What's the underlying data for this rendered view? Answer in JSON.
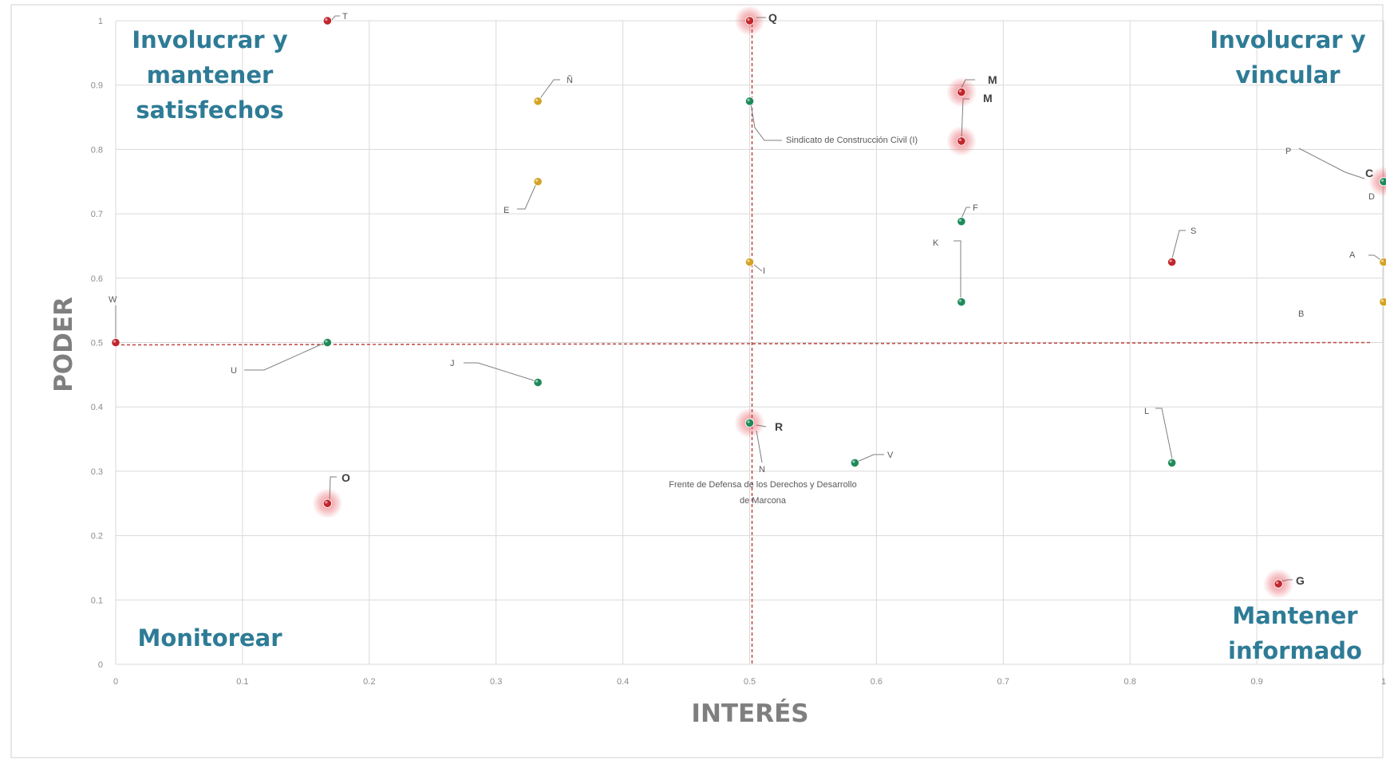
{
  "colors": {
    "red": "#c0272d",
    "green": "#1e8a5a",
    "yellow": "#d4a324",
    "quadrant_text": "#2e7b96",
    "reference_line": "#c0504d"
  },
  "chart_data": {
    "type": "scatter",
    "xlabel": "INTERÉS",
    "ylabel": "PODER",
    "xlim": [
      0,
      1
    ],
    "ylim": [
      0,
      1
    ],
    "xticks": [
      "0",
      "0.1",
      "0.2",
      "0.3",
      "0.4",
      "0.5",
      "0.6",
      "0.7",
      "0.8",
      "0.9",
      "1"
    ],
    "yticks": [
      "0",
      "0.1",
      "0.2",
      "0.3",
      "0.4",
      "0.5",
      "0.6",
      "0.7",
      "0.8",
      "0.9",
      "1"
    ],
    "grid": true,
    "reference_lines": {
      "x": 0.5,
      "y": 0.5
    },
    "quadrants": [
      {
        "id": "top-left",
        "lines": [
          "Involucrar y",
          "mantener",
          "satisfechos"
        ]
      },
      {
        "id": "top-right",
        "lines": [
          "Involucrar y",
          "vincular"
        ]
      },
      {
        "id": "bottom-left",
        "lines": [
          "Monitorear"
        ]
      },
      {
        "id": "bottom-right",
        "lines": [
          "Mantener",
          "informado"
        ]
      }
    ],
    "points": [
      {
        "label": "T",
        "x": 0.167,
        "y": 1.0,
        "color": "red",
        "highlight": false
      },
      {
        "label": "Q",
        "x": 0.5,
        "y": 1.0,
        "color": "red",
        "highlight": true
      },
      {
        "label": "Ñ",
        "x": 0.333,
        "y": 0.875,
        "color": "yellow",
        "highlight": false
      },
      {
        "label": "M",
        "x": 0.667,
        "y": 0.889,
        "color": "red",
        "highlight": true
      },
      {
        "label": "M",
        "x": 0.667,
        "y": 0.813,
        "color": "red",
        "highlight": true
      },
      {
        "label": "Sindicato de Construcción Civil (I)",
        "x": 0.5,
        "y": 0.875,
        "color": "green",
        "highlight": false
      },
      {
        "label": "E",
        "x": 0.333,
        "y": 0.75,
        "color": "yellow",
        "highlight": false
      },
      {
        "label": "F",
        "x": 0.667,
        "y": 0.688,
        "color": "green",
        "highlight": false
      },
      {
        "label": "K",
        "x": 0.667,
        "y": 0.563,
        "color": "green",
        "highlight": false
      },
      {
        "label": "I",
        "x": 0.5,
        "y": 0.625,
        "color": "yellow",
        "highlight": false
      },
      {
        "label": "S",
        "x": 0.833,
        "y": 0.625,
        "color": "red",
        "highlight": false
      },
      {
        "label": "P",
        "x": 1.0,
        "y": 0.75,
        "color": "green",
        "highlight": false
      },
      {
        "label": "C",
        "x": 1.0,
        "y": 0.75,
        "color": "red",
        "highlight": true
      },
      {
        "label": "D",
        "x": 1.0,
        "y": 0.75,
        "color": "green",
        "highlight": false
      },
      {
        "label": "A",
        "x": 1.0,
        "y": 0.625,
        "color": "yellow",
        "highlight": false
      },
      {
        "label": "B",
        "x": 1.0,
        "y": 0.563,
        "color": "yellow",
        "highlight": false
      },
      {
        "label": "W",
        "x": 0.0,
        "y": 0.5,
        "color": "red",
        "highlight": false
      },
      {
        "label": "U",
        "x": 0.167,
        "y": 0.5,
        "color": "green",
        "highlight": false
      },
      {
        "label": "J",
        "x": 0.333,
        "y": 0.438,
        "color": "green",
        "highlight": false
      },
      {
        "label": "R",
        "x": 0.5,
        "y": 0.375,
        "color": "red",
        "highlight": true
      },
      {
        "label": "Frente de Defensa de los Derechos y Desarrollo de Marcona (N)",
        "x": 0.5,
        "y": 0.375,
        "color": "green",
        "highlight": false
      },
      {
        "label": "V",
        "x": 0.583,
        "y": 0.313,
        "color": "green",
        "highlight": false
      },
      {
        "label": "L",
        "x": 0.833,
        "y": 0.313,
        "color": "green",
        "highlight": false
      },
      {
        "label": "O",
        "x": 0.167,
        "y": 0.25,
        "color": "red",
        "highlight": true
      },
      {
        "label": "G",
        "x": 0.917,
        "y": 0.125,
        "color": "red",
        "highlight": true
      }
    ],
    "callouts": {
      "T": "T",
      "Q": "Q",
      "Ñ": "Ñ",
      "M1": "M",
      "M2": "M",
      "sindicato": "Sindicato de Construcción Civil (I)",
      "E": "E",
      "F": "F",
      "K": "K",
      "I": "I",
      "S": "S",
      "P": "P",
      "C": "C",
      "D": "D",
      "A": "A",
      "B": "B",
      "W": "W",
      "U": "U",
      "J": "J",
      "R": "R",
      "N": "N",
      "frente_line1": "Frente de Defensa de los Derechos y Desarrollo",
      "frente_line2": "de Marcona",
      "V": "V",
      "L": "L",
      "O": "O",
      "G": "G"
    }
  }
}
